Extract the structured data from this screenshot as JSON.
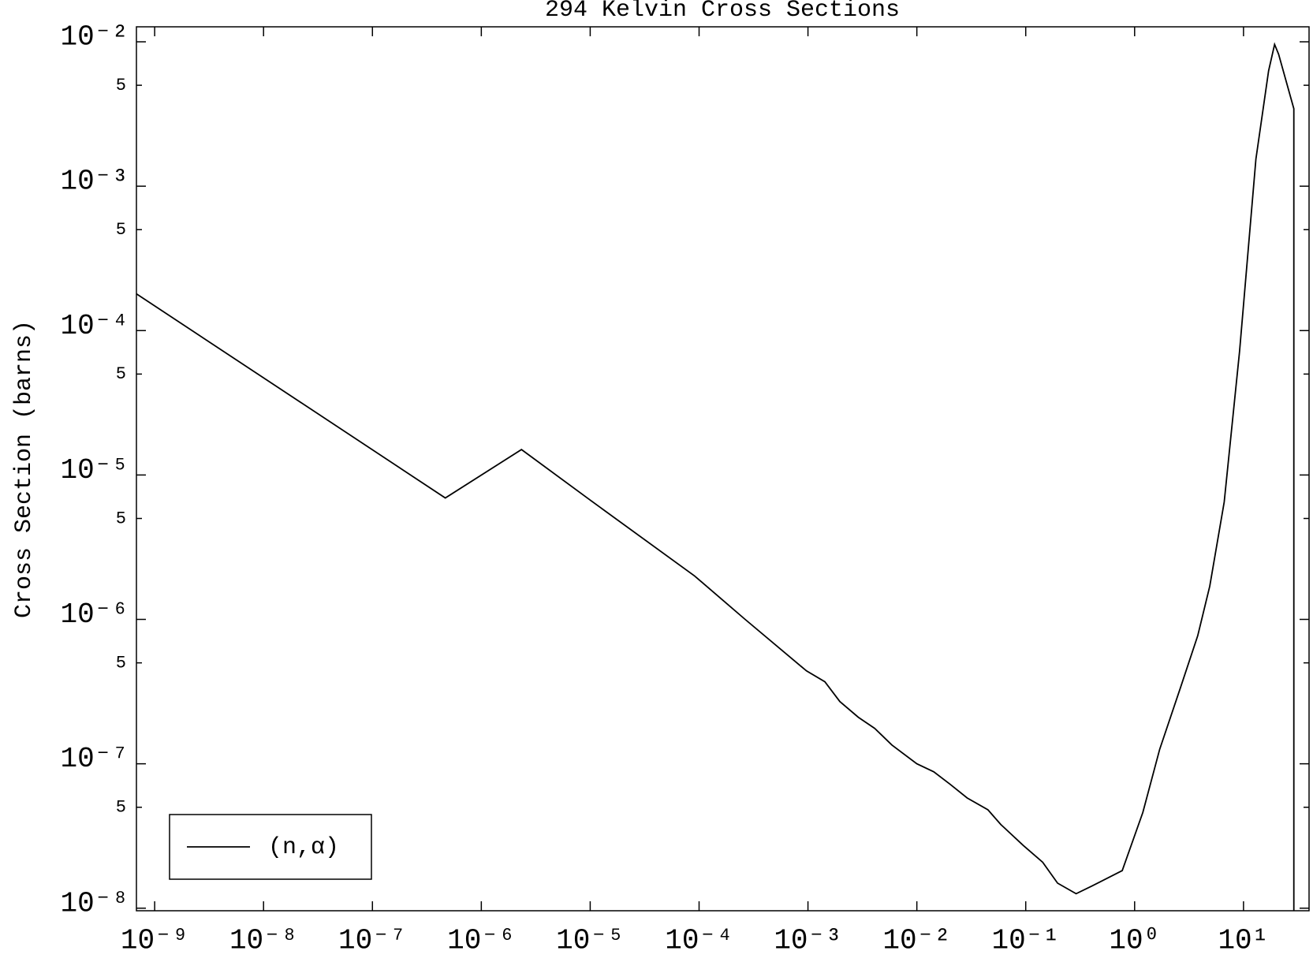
{
  "chart_data": {
    "type": "line",
    "title": "294 Kelvin Cross Sections",
    "y_label": "Cross Section (barns)",
    "log_x": true,
    "log_y": true,
    "grid": false,
    "legend": "lower left",
    "xlim": [
      6.8e-10,
      40
    ],
    "ylim": [
      9.6e-09,
      0.0127
    ],
    "xticks": [
      {
        "value": 1e-09,
        "label": "10⁻⁹"
      },
      {
        "value": 1e-08,
        "label": "10⁻⁸"
      },
      {
        "value": 1e-07,
        "label": "10⁻⁷"
      },
      {
        "value": 1e-06,
        "label": "10⁻⁶"
      },
      {
        "value": 1e-05,
        "label": "10⁻⁵"
      },
      {
        "value": 0.0001,
        "label": "10⁻⁴"
      },
      {
        "value": 0.001,
        "label": "10⁻³"
      },
      {
        "value": 0.01,
        "label": "10⁻²"
      },
      {
        "value": 0.1,
        "label": "10⁻¹"
      },
      {
        "value": 1,
        "label": "10⁰"
      },
      {
        "value": 10,
        "label": "10¹"
      }
    ],
    "yticks": [
      {
        "value": 1e-08,
        "label": "10⁻⁸"
      },
      {
        "value": 5e-08,
        "label": "5"
      },
      {
        "value": 1e-07,
        "label": "10⁻⁷"
      },
      {
        "value": 5e-07,
        "label": "5"
      },
      {
        "value": 1e-06,
        "label": "10⁻⁶"
      },
      {
        "value": 5e-06,
        "label": "5"
      },
      {
        "value": 1e-05,
        "label": "10⁻⁵"
      },
      {
        "value": 5e-05,
        "label": "5"
      },
      {
        "value": 0.0001,
        "label": "10⁻⁴"
      },
      {
        "value": 0.0005,
        "label": "5"
      },
      {
        "value": 0.001,
        "label": "10⁻³"
      },
      {
        "value": 0.005,
        "label": "5"
      },
      {
        "value": 0.01,
        "label": "10⁻²"
      }
    ],
    "x": [
      6.78e-10,
      4.67e-07,
      2.34e-06,
      1e-05,
      9.1e-05,
      0.000265,
      0.00097,
      0.00143,
      0.00196,
      0.0029,
      0.0041,
      0.0059,
      0.01,
      0.0143,
      0.0203,
      0.029,
      0.045,
      0.059,
      0.095,
      0.143,
      0.196,
      0.29,
      0.41,
      0.77,
      1.19,
      1.7,
      2.65,
      3.8,
      4.9,
      6.65,
      9.2,
      13,
      17,
      19.3,
      21,
      29,
      29
    ],
    "series": [
      {
        "name": "(n,α)",
        "color": "#000000",
        "values": [
          0.00018,
          6.93e-06,
          1.5e-05,
          6.7e-06,
          2e-06,
          1e-06,
          4.4e-07,
          3.7e-07,
          2.7e-07,
          2.1e-07,
          1.76e-07,
          1.35e-07,
          1e-07,
          8.8e-08,
          7.2e-08,
          5.8e-08,
          4.8e-08,
          3.8e-08,
          2.72e-08,
          2.08e-08,
          1.49e-08,
          1.26e-08,
          1.43e-08,
          1.82e-08,
          4.6e-08,
          1.26e-07,
          3.4e-07,
          7.7e-07,
          1.7e-06,
          6.5e-06,
          7.2e-05,
          0.00154,
          0.0063,
          0.0096,
          0.0082,
          0.00344,
          9.6e-09
        ]
      }
    ]
  }
}
